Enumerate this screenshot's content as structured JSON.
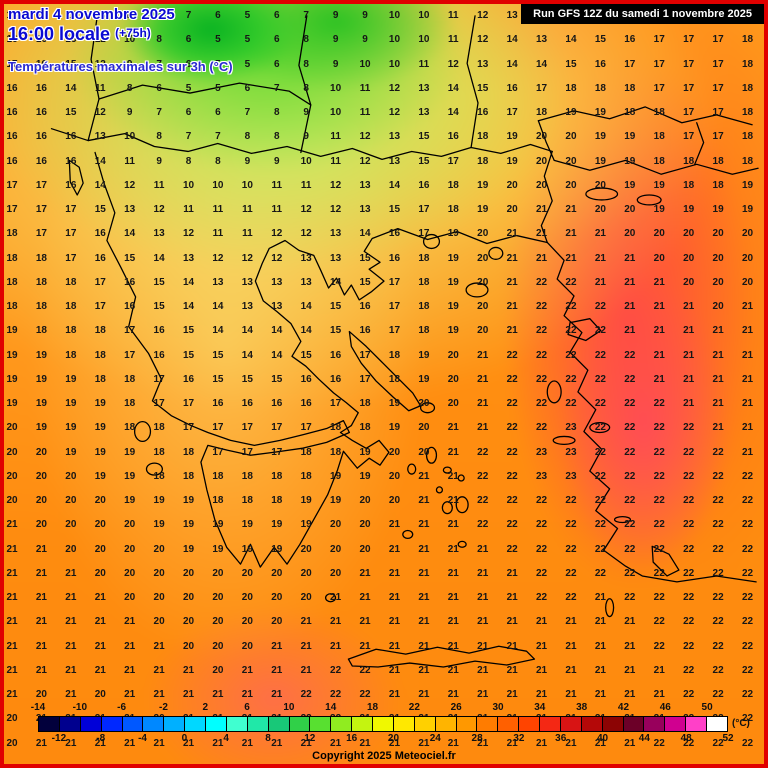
{
  "header": {
    "date_line": "mardi 4 novembre 2025",
    "time_line": "16:00 locale",
    "offset": "(+75h)",
    "subtitle": "Températures maximales sur 3h (°C)",
    "run_info": "Run GFS 12Z du samedi 1 novembre 2025"
  },
  "footer": {
    "copyright": "Copyright 2025 Meteociel.fr",
    "unit_label": "(°C)"
  },
  "scale": {
    "top_labels": [
      "-14",
      "-10",
      "-6",
      "-2",
      "2",
      "6",
      "10",
      "14",
      "18",
      "22",
      "26",
      "30",
      "34",
      "38",
      "42",
      "46",
      "50"
    ],
    "bottom_labels": [
      "-12",
      "-8",
      "-4",
      "0",
      "4",
      "8",
      "12",
      "16",
      "20",
      "24",
      "28",
      "32",
      "36",
      "40",
      "44",
      "48",
      "52"
    ],
    "colors": [
      "#02003c",
      "#00008e",
      "#0000d8",
      "#0028ff",
      "#0058ff",
      "#0088ff",
      "#00b0ff",
      "#00d8ff",
      "#00ffff",
      "#40ffd0",
      "#20e8a8",
      "#18c878",
      "#30d048",
      "#58e030",
      "#90ec20",
      "#c4f410",
      "#f0f800",
      "#ffe800",
      "#ffd000",
      "#ffb400",
      "#ff9800",
      "#ff7c00",
      "#ff6000",
      "#ff4400",
      "#f42814",
      "#d81414",
      "#b40808",
      "#8c0404",
      "#6c0028",
      "#98005c",
      "#d00090",
      "#ff40c8",
      "#ffffff"
    ]
  },
  "map_colors": {
    "border": "#e00000",
    "cold_green": "#28c828",
    "mild_yellow": "#f0ee86",
    "base_orange": "#ff8d10",
    "warm_red": "#ff4848",
    "hot_pink": "#ff4080",
    "header_blue": "#0a0ad2"
  },
  "grid": {
    "cols": 26,
    "rows": [
      "16 16 15 13 11 9 7 6 5 6 7 9 9 10 10 11 12 13 12 13 14 16 17 17 17 18",
      "16 16 15 12 10 8 6 5 5 6 8 9 9 10 10 11 12 14 13 14 15 16 17 17 17 18",
      "17 16 15 12 9 7 6 5 5 6 8 9 10 10 11 12 13 14 14 15 16 17 17 17 17 18",
      "16 16 14 11 8 6 5 5 6 7 8 10 11 12 13 14 15 16 17 18 18 18 17 17 17 18",
      "16 16 15 12 9 7 6 6 7 8 9 10 11 12 13 14 16 17 18 19 19 18 18 17 17 18",
      "16 16 16 13 10 8 7 7 8 8 9 11 12 13 15 16 18 19 20 20 19 19 18 17 17 18",
      "16 16 16 14 11 9 8 8 9 9 10 11 12 13 15 17 18 19 20 20 19 19 18 18 18 18",
      "17 17 16 14 12 11 10 10 10 11 11 12 13 14 16 18 19 20 20 20 20 19 19 18 18 19",
      "17 17 17 15 13 12 11 11 11 11 12 12 13 15 17 18 19 20 21 21 20 20 19 19 19 19",
      "18 17 17 16 14 13 12 11 11 12 12 13 14 16 17 19 20 21 21 21 21 20 20 20 20 20",
      "18 18 17 16 15 14 13 12 12 12 13 13 15 16 18 19 20 21 21 21 21 21 20 20 20 20",
      "18 18 18 17 16 15 14 13 13 13 13 14 15 17 18 19 20 21 22 22 21 21 21 20 20 20",
      "18 18 18 17 16 15 14 14 13 13 14 15 16 17 18 19 20 21 22 22 22 21 21 21 20 21",
      "19 18 18 18 17 16 15 14 14 14 14 15 16 17 18 19 20 21 22 22 22 21 21 21 21 21",
      "19 19 18 18 17 16 15 15 14 14 15 16 17 18 19 20 21 22 22 22 22 22 21 21 21 21",
      "19 19 19 18 18 17 16 15 15 15 16 16 17 18 19 20 21 22 22 22 22 22 21 21 21 21",
      "19 19 19 19 18 17 17 16 16 16 16 17 18 19 20 20 21 22 22 22 22 22 22 21 21 21",
      "20 19 19 19 18 18 17 17 17 17 17 18 18 19 20 21 21 22 22 23 22 22 22 22 21 21",
      "20 20 19 19 19 18 18 17 17 17 18 18 19 20 20 21 22 22 23 23 22 22 22 22 22 21",
      "20 20 20 19 19 18 18 18 18 18 18 19 19 20 21 21 22 22 23 23 22 22 22 22 22 22",
      "20 20 20 20 19 19 19 18 18 18 19 19 20 20 21 21 22 22 22 22 22 22 22 22 22 22",
      "21 20 20 20 20 19 19 19 19 19 19 20 20 21 21 21 22 22 22 22 22 22 22 22 22 22",
      "21 21 20 20 20 20 19 19 19 19 20 20 20 21 21 21 21 22 22 22 22 22 22 22 22 22",
      "21 21 21 20 20 20 20 20 20 20 20 20 21 21 21 21 21 21 22 22 22 22 22 22 22 22",
      "21 21 21 21 20 20 20 20 20 20 20 21 21 21 21 21 21 21 22 22 21 22 22 22 22 22",
      "21 21 21 21 21 20 20 20 20 20 21 21 21 21 21 21 21 21 21 21 21 21 22 22 22 22",
      "21 21 21 21 21 21 20 20 20 21 21 21 21 21 21 21 21 21 21 21 21 21 22 22 22 22",
      "21 21 21 21 21 21 21 20 21 21 21 22 22 21 21 21 21 21 21 21 21 21 21 22 22 22",
      "21 20 21 20 21 21 21 21 21 21 22 22 22 21 21 21 21 21 21 21 21 21 21 22 22 22",
      "20 21 21 21 21 20 21 21 21 21 22 22 21 21 21 21 21 21 21 21 21 21 21 22 22 22",
      "20 21 21 21 21 21 21 21 21 21 21 21 21 21 21 21 21 21 21 21 21 21 22 22 22 22"
    ]
  }
}
